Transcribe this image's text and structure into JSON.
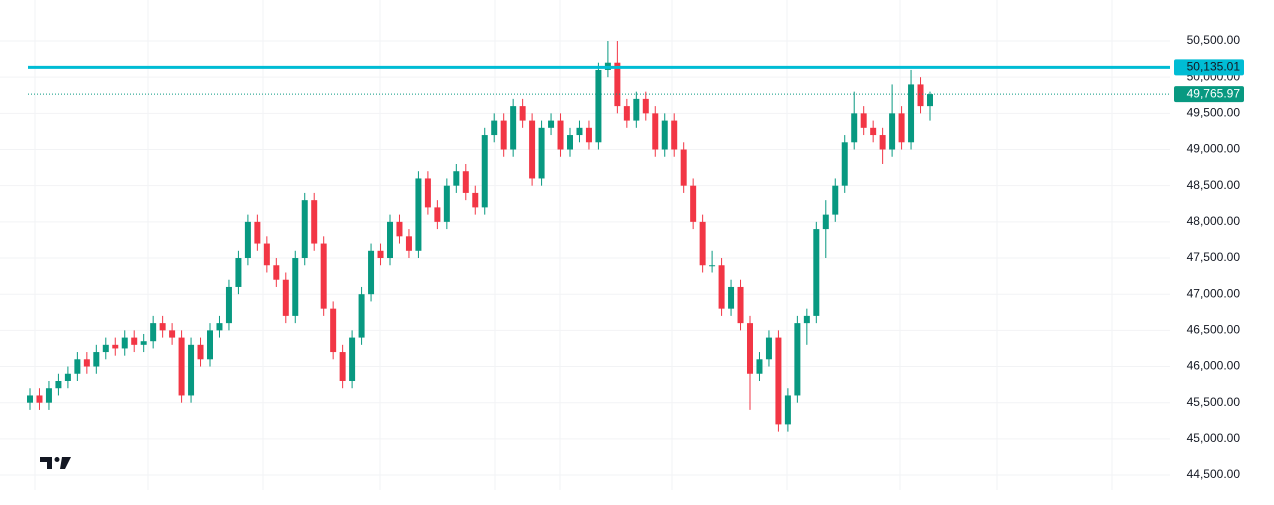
{
  "chart_data": {
    "type": "candlestick",
    "open": [
      45500,
      45600,
      45500,
      45700,
      45800,
      45900,
      46100,
      46000,
      46200,
      46300,
      46250,
      46400,
      46300,
      46350,
      46600,
      46500,
      46400,
      45600,
      46300,
      46100,
      46500,
      46600,
      47100,
      47500,
      48000,
      47700,
      47400,
      47200,
      46700,
      47500,
      48300,
      47700,
      46800,
      46200,
      45800,
      46400,
      47000,
      47600,
      47500,
      48000,
      47800,
      47600,
      48600,
      48200,
      48000,
      48500,
      48700,
      48400,
      48200,
      49200,
      49400,
      49000,
      49600,
      49400,
      48600,
      49300,
      49400,
      49000,
      49200,
      49300,
      49100,
      50100,
      50200,
      49600,
      49400,
      49700,
      49500,
      49000,
      49400,
      49000,
      48500,
      48000,
      47400,
      47400,
      46800,
      47100,
      46600,
      45900,
      46100,
      46400,
      45200,
      45600,
      46600,
      46700,
      47900,
      48100,
      48500,
      49100,
      49500,
      49300,
      49200,
      49000,
      49500,
      49100,
      49900,
      49600
    ],
    "high": [
      45700,
      45700,
      45800,
      45900,
      46000,
      46200,
      46200,
      46300,
      46400,
      46400,
      46500,
      46500,
      46450,
      46700,
      46700,
      46600,
      46500,
      46400,
      46400,
      46600,
      46700,
      47200,
      47600,
      48100,
      48100,
      47800,
      47500,
      47300,
      47600,
      48400,
      48400,
      47800,
      46900,
      46300,
      46500,
      47100,
      47700,
      47700,
      48100,
      48100,
      47900,
      48700,
      48700,
      48300,
      48600,
      48800,
      48800,
      48500,
      49300,
      49500,
      49500,
      49700,
      49700,
      49500,
      49400,
      49500,
      49500,
      49300,
      49400,
      49400,
      50200,
      50500,
      50500,
      49700,
      49800,
      49800,
      49600,
      49500,
      49500,
      49100,
      48600,
      48100,
      47600,
      47500,
      47200,
      47200,
      46700,
      46200,
      46500,
      46500,
      45700,
      46700,
      46800,
      48000,
      48300,
      48600,
      49200,
      49800,
      49600,
      49400,
      49300,
      49900,
      49600,
      50100,
      50000,
      49800
    ],
    "low": [
      45400,
      45400,
      45400,
      45600,
      45700,
      45800,
      45900,
      45900,
      46100,
      46150,
      46150,
      46200,
      46200,
      46250,
      46400,
      46300,
      45500,
      45500,
      46000,
      46000,
      46400,
      46500,
      47000,
      47400,
      47600,
      47300,
      47100,
      46600,
      46600,
      47400,
      47600,
      46700,
      46100,
      45700,
      45700,
      46300,
      46900,
      47400,
      47400,
      47700,
      47500,
      47500,
      48100,
      47900,
      47900,
      48400,
      48300,
      48100,
      48100,
      49100,
      48900,
      48900,
      49300,
      48500,
      48500,
      49200,
      48900,
      48900,
      49100,
      49000,
      49000,
      50000,
      49500,
      49300,
      49300,
      49400,
      48900,
      48900,
      48900,
      48400,
      47900,
      47300,
      47300,
      46700,
      46700,
      46500,
      45400,
      45800,
      46000,
      45100,
      45100,
      45500,
      46300,
      46600,
      47500,
      48000,
      48400,
      49000,
      49200,
      49100,
      48800,
      48900,
      49000,
      49000,
      49500,
      49400
    ],
    "close": [
      45600,
      45500,
      45700,
      45800,
      45900,
      46100,
      46000,
      46200,
      46300,
      46250,
      46400,
      46300,
      46350,
      46600,
      46500,
      46400,
      45600,
      46300,
      46100,
      46500,
      46600,
      47100,
      47500,
      48000,
      47700,
      47400,
      47200,
      46700,
      47500,
      48300,
      47700,
      46800,
      46200,
      45800,
      46400,
      47000,
      47600,
      47500,
      48000,
      47800,
      47600,
      48600,
      48200,
      48000,
      48500,
      48700,
      48400,
      48200,
      49200,
      49400,
      49000,
      49600,
      49400,
      48600,
      49300,
      49400,
      49000,
      49200,
      49300,
      49100,
      50100,
      50200,
      49600,
      49400,
      49700,
      49500,
      49000,
      49400,
      49000,
      48500,
      48000,
      47400,
      47400,
      46800,
      47100,
      46600,
      45900,
      46100,
      46400,
      45200,
      45600,
      46600,
      46700,
      47900,
      48100,
      48500,
      49100,
      49500,
      49300,
      49200,
      49000,
      49500,
      49100,
      49900,
      49600,
      49766
    ],
    "color_up": "#089981",
    "color_down": "#f23645",
    "ylim": [
      44293,
      51067
    ],
    "yticks": [
      {
        "value": 44500,
        "label": "44,500.00"
      },
      {
        "value": 45000,
        "label": "45,000.00"
      },
      {
        "value": 45500,
        "label": "45,500.00"
      },
      {
        "value": 46000,
        "label": "46,000.00"
      },
      {
        "value": 46500,
        "label": "46,500.00"
      },
      {
        "value": 47000,
        "label": "47,000.00"
      },
      {
        "value": 47500,
        "label": "47,500.00"
      },
      {
        "value": 48000,
        "label": "48,000.00"
      },
      {
        "value": 48500,
        "label": "48,500.00"
      },
      {
        "value": 49000,
        "label": "49,000.00"
      },
      {
        "value": 49500,
        "label": "49,500.00"
      },
      {
        "value": 50000,
        "label": "50,000.00"
      },
      {
        "value": 50500,
        "label": "50,500.00"
      }
    ],
    "grid": true,
    "hline": {
      "value": 50135.01,
      "label": "50,135.01",
      "color": "#00bcd4"
    },
    "last_price": {
      "value": 49765.97,
      "label": "49,765.97",
      "color": "#089981"
    }
  }
}
